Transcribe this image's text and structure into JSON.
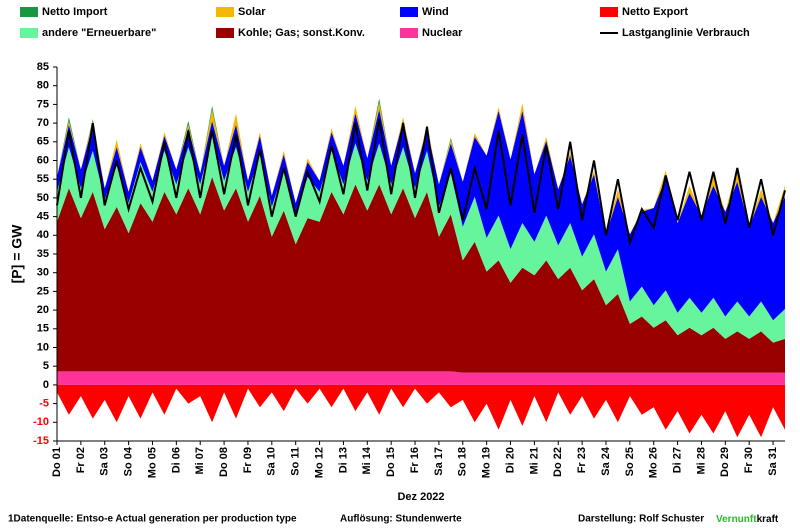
{
  "chart_data": {
    "type": "area",
    "ylabel": "[P] = GW",
    "xlabel": "Dez 2022",
    "categories": [
      "Do 01",
      null,
      "Fr 02",
      null,
      "Sa 03",
      null,
      "So 04",
      null,
      "Mo 05",
      null,
      "Di 06",
      null,
      "Mi 07",
      null,
      "Do 08",
      null,
      "Fr 09",
      null,
      "Sa 10",
      null,
      "So 11",
      null,
      "Mo 12",
      null,
      "Di 13",
      null,
      "Mi 14",
      null,
      "Do 15",
      null,
      "Fr 16",
      null,
      "Sa 17",
      null,
      "So 18",
      null,
      "Mo 19",
      null,
      "Di 20",
      null,
      "Mi 21",
      null,
      "Do 22",
      null,
      "Fr 23",
      null,
      "Sa 24",
      null,
      "So 25",
      null,
      "Mo 26",
      null,
      "Di 27",
      null,
      "Mi 28",
      null,
      "Do 29",
      null,
      "Fr 30",
      null,
      "Sa 31",
      null
    ],
    "ylim": [
      -15,
      85
    ],
    "yticks": [
      -15,
      -10,
      -5,
      0,
      5,
      10,
      15,
      20,
      25,
      30,
      35,
      40,
      45,
      50,
      55,
      60,
      65,
      70,
      75,
      80,
      85
    ],
    "series": [
      {
        "name": "Netto Import",
        "color": "#1a9641",
        "values": [
          0,
          1,
          0,
          0.5,
          0,
          0,
          0,
          0,
          0,
          0,
          0,
          1,
          0,
          1,
          0,
          0,
          0,
          0,
          0,
          0,
          0,
          0,
          0,
          0,
          0,
          0,
          0,
          1,
          0,
          0,
          0,
          0,
          0,
          0.5,
          0,
          0,
          0,
          0,
          0,
          0,
          0,
          0,
          0,
          0,
          0,
          0,
          0,
          0,
          0,
          0,
          0,
          0,
          0,
          0,
          0,
          0,
          0,
          0,
          0,
          0,
          0,
          0
        ]
      },
      {
        "name": "Solar",
        "color": "#f5b800",
        "values": [
          0,
          1,
          0,
          1,
          0,
          2,
          0,
          1,
          0,
          1,
          0,
          1,
          0,
          3,
          0,
          3,
          0,
          1,
          0,
          1,
          0,
          1,
          0,
          1,
          0,
          2,
          0,
          2,
          0,
          1,
          0,
          1,
          0,
          1,
          0,
          1,
          0,
          1,
          0,
          2,
          0,
          1,
          0,
          1,
          0,
          1,
          0,
          2,
          0,
          0.5,
          0,
          2,
          0,
          2,
          0,
          3,
          0,
          4,
          0,
          2,
          0,
          3
        ]
      },
      {
        "name": "Wind",
        "color": "#0000ff",
        "values": [
          4,
          6,
          5,
          7,
          3,
          5,
          3,
          4,
          3,
          4,
          4,
          5,
          3,
          4,
          4,
          6,
          3,
          5,
          3,
          4,
          3,
          4,
          3,
          5,
          5,
          8,
          6,
          9,
          5,
          7,
          4,
          6,
          6,
          8,
          12,
          16,
          22,
          28,
          24,
          30,
          18,
          20,
          15,
          18,
          14,
          16,
          10,
          14,
          18,
          20,
          26,
          30,
          24,
          28,
          26,
          30,
          28,
          32,
          24,
          28,
          26,
          30
        ]
      },
      {
        "name": "Netto Export",
        "color": "#ff0000",
        "values": [
          -2,
          -8,
          -3,
          -9,
          -4,
          -10,
          -3,
          -9,
          -2,
          -8,
          -1,
          -5,
          -3,
          -10,
          -2,
          -9,
          -1,
          -6,
          -2,
          -7,
          -1,
          -5,
          -1,
          -6,
          -1,
          -7,
          -2,
          -8,
          -1,
          -6,
          -1,
          -5,
          -2,
          -6,
          -4,
          -10,
          -5,
          -12,
          -4,
          -11,
          -3,
          -10,
          -2,
          -8,
          -3,
          -9,
          -4,
          -10,
          -3,
          -8,
          -6,
          -12,
          -7,
          -13,
          -8,
          -13,
          -7,
          -14,
          -8,
          -14,
          -6,
          -12
        ]
      },
      {
        "name": "andere \"Erneuerbare\"",
        "color": "#66f59c",
        "values": [
          8,
          11,
          8,
          11,
          8,
          11,
          8,
          11,
          8,
          11,
          8,
          11,
          8,
          11,
          8,
          11,
          8,
          11,
          8,
          11,
          8,
          11,
          8,
          11,
          8,
          11,
          8,
          11,
          8,
          11,
          8,
          11,
          8,
          11,
          9,
          12,
          9,
          12,
          9,
          12,
          9,
          12,
          9,
          12,
          9,
          12,
          9,
          12,
          6,
          8,
          6,
          8,
          6,
          8,
          6,
          8,
          6,
          8,
          6,
          8,
          6,
          8
        ]
      },
      {
        "name": "Kohle; Gas; sonst.Konv.",
        "color": "#990000",
        "values": [
          40,
          49,
          41,
          48,
          38,
          44,
          37,
          45,
          40,
          48,
          42,
          49,
          42,
          52,
          43,
          49,
          40,
          47,
          36,
          43,
          34,
          41,
          40,
          48,
          42,
          50,
          43,
          50,
          42,
          49,
          41,
          48,
          36,
          42,
          30,
          35,
          27,
          30,
          24,
          28,
          26,
          30,
          25,
          28,
          22,
          25,
          18,
          21,
          13,
          15,
          12,
          14,
          10,
          12,
          10,
          12,
          9,
          11,
          9,
          11,
          8,
          9
        ]
      },
      {
        "name": "Nuclear",
        "color": "#ff3399",
        "values": [
          3.6,
          3.6,
          3.6,
          3.6,
          3.6,
          3.6,
          3.6,
          3.6,
          3.6,
          3.6,
          3.6,
          3.6,
          3.6,
          3.6,
          3.6,
          3.6,
          3.6,
          3.6,
          3.6,
          3.6,
          3.6,
          3.6,
          3.6,
          3.6,
          3.6,
          3.6,
          3.6,
          3.6,
          3.6,
          3.6,
          3.6,
          3.6,
          3.6,
          3.6,
          3.3,
          3.3,
          3.3,
          3.3,
          3.3,
          3.3,
          3.3,
          3.3,
          3.3,
          3.3,
          3.3,
          3.3,
          3.3,
          3.3,
          3.3,
          3.3,
          3.3,
          3.3,
          3.3,
          3.3,
          3.3,
          3.3,
          3.3,
          3.3,
          3.3,
          3.3,
          3.3,
          3.3
        ]
      },
      {
        "name": "Lastganglinie Verbrauch",
        "color": "#000000",
        "type": "line",
        "values": [
          48,
          68,
          50,
          70,
          48,
          60,
          47,
          58,
          49,
          65,
          50,
          68,
          50,
          68,
          51,
          67,
          48,
          63,
          45,
          58,
          45,
          57,
          49,
          64,
          51,
          70,
          52,
          71,
          51,
          70,
          50,
          69,
          46,
          58,
          44,
          58,
          47,
          68,
          48,
          67,
          46,
          64,
          47,
          65,
          44,
          60,
          40,
          55,
          38,
          47,
          42,
          56,
          44,
          57,
          44,
          57,
          43,
          58,
          42,
          55,
          40,
          52
        ]
      }
    ]
  },
  "footer": {
    "source": "1Datenquelle: Entso-e  Actual generation per production type",
    "resolution": "Auflösung: Stundenwerte",
    "author": "Darstellung:  Rolf Schuster",
    "brand_a": "Vernunft",
    "brand_b": "kraft"
  }
}
